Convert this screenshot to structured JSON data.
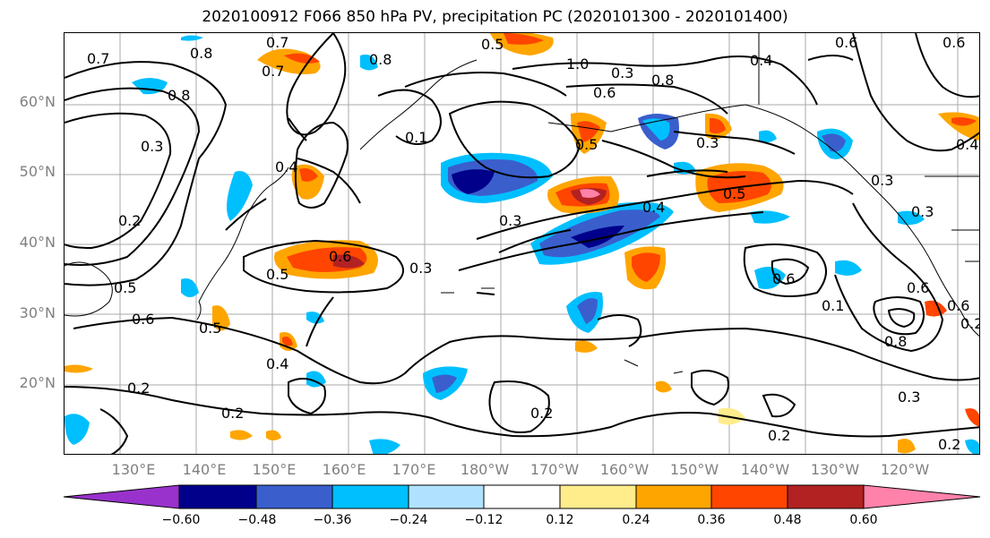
{
  "title": "2020100912 F066 850 hPa PV, precipitation PC (2020101300 - 2020101400)",
  "lat_labels": [
    "60°N",
    "50°N",
    "40°N",
    "30°N",
    "20°N"
  ],
  "lon_labels": [
    "130°E",
    "140°E",
    "150°E",
    "160°E",
    "170°E",
    "180°W",
    "170°W",
    "160°W",
    "150°W",
    "140°W",
    "130°W",
    "120°W"
  ],
  "colorbar": {
    "ticks": [
      "−0.60",
      "−0.48",
      "−0.36",
      "−0.24",
      "−0.12",
      "0.12",
      "0.24",
      "0.36",
      "0.48",
      "0.60"
    ],
    "colors": [
      "#9932cc",
      "#00008b",
      "#3a5fcd",
      "#00bfff",
      "#b0e2ff",
      "#ffffff",
      "#ffec8b",
      "#ffa500",
      "#ff4500",
      "#b22222",
      "#ff82ab"
    ]
  },
  "contour_labels": [
    "0.7",
    "0.8",
    "0.7",
    "0.5",
    "0.6",
    "1.0",
    "0.3",
    "0.8",
    "0.6",
    "0.8",
    "0.7",
    "0.4",
    "0.1",
    "0.6",
    "0.8",
    "0.3",
    "0.4",
    "0.5",
    "0.3",
    "0.3",
    "0.5",
    "0.4",
    "0.6",
    "0.3",
    "0.5",
    "0.6",
    "0.5",
    "0.6",
    "0.4",
    "0.2",
    "0.2",
    "0.2",
    "0.2",
    "0.3",
    "0.5",
    "0.3",
    "0.4",
    "0.1",
    "0.8",
    "0.2",
    "0.2",
    "0.6",
    "0.6",
    "0.3",
    "0.2"
  ]
}
